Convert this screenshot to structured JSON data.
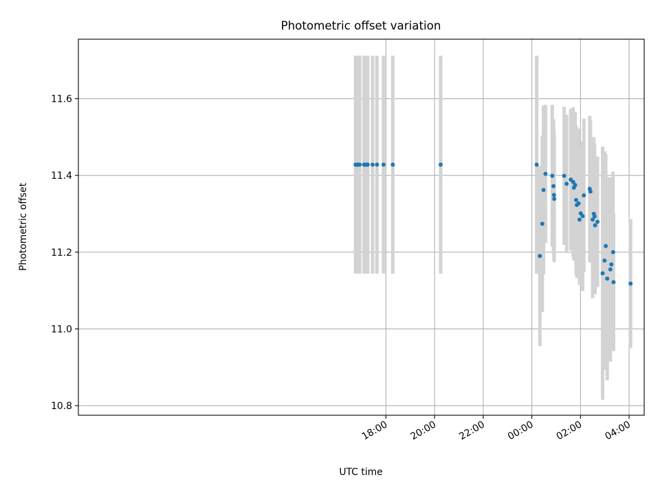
{
  "chart_data": {
    "type": "scatter",
    "title": "Photometric offset variation",
    "xlabel": "UTC time",
    "ylabel": "Photometric offset",
    "x_unit": "hours since 00:00 UTC (negative = previous day)",
    "xlim": [
      -18.65,
      4.62
    ],
    "ylim": [
      10.775,
      11.755
    ],
    "x_ticks": [
      {
        "value": -6,
        "label": "18:00"
      },
      {
        "value": -4,
        "label": "20:00"
      },
      {
        "value": -2,
        "label": "22:00"
      },
      {
        "value": 0,
        "label": "00:00"
      },
      {
        "value": 2,
        "label": "02:00"
      },
      {
        "value": 4,
        "label": "04:00"
      }
    ],
    "y_ticks": [
      {
        "value": 10.8,
        "label": "10.8"
      },
      {
        "value": 11.0,
        "label": "11.0"
      },
      {
        "value": 11.2,
        "label": "11.2"
      },
      {
        "value": 11.4,
        "label": "11.4"
      },
      {
        "value": 11.6,
        "label": "11.6"
      }
    ],
    "grid": true,
    "colors": {
      "points": "#1f77b4",
      "errorbars": "#d3d3d3",
      "grid": "#b0b0b0"
    },
    "series": [
      {
        "points": [
          {
            "x": -7.25,
            "y": 11.428,
            "err": 0.284
          },
          {
            "x": -7.2,
            "y": 11.428,
            "err": 0.284
          },
          {
            "x": -7.15,
            "y": 11.428,
            "err": 0.284
          },
          {
            "x": -7.08,
            "y": 11.428,
            "err": 0.284
          },
          {
            "x": -6.9,
            "y": 11.428,
            "err": 0.284
          },
          {
            "x": -6.85,
            "y": 11.428,
            "err": 0.284
          },
          {
            "x": -6.8,
            "y": 11.428,
            "err": 0.284
          },
          {
            "x": -6.75,
            "y": 11.428,
            "err": 0.284
          },
          {
            "x": -6.55,
            "y": 11.428,
            "err": 0.284
          },
          {
            "x": -6.37,
            "y": 11.428,
            "err": 0.284
          },
          {
            "x": -6.1,
            "y": 11.428,
            "err": 0.284
          },
          {
            "x": -5.72,
            "y": 11.428,
            "err": 0.284
          },
          {
            "x": -3.75,
            "y": 11.428,
            "err": 0.284
          },
          {
            "x": 0.2,
            "y": 11.428,
            "err": 0.284
          },
          {
            "x": 0.33,
            "y": 11.19,
            "err": 0.235
          },
          {
            "x": 0.43,
            "y": 11.274,
            "err": 0.23
          },
          {
            "x": 0.48,
            "y": 11.362,
            "err": 0.22
          },
          {
            "x": 0.56,
            "y": 11.404,
            "err": 0.18
          },
          {
            "x": 0.84,
            "y": 11.399,
            "err": 0.185
          },
          {
            "x": 0.89,
            "y": 11.372,
            "err": 0.175
          },
          {
            "x": 0.91,
            "y": 11.349,
            "err": 0.17
          },
          {
            "x": 0.92,
            "y": 11.339,
            "err": 0.165
          },
          {
            "x": 1.33,
            "y": 11.399,
            "err": 0.18
          },
          {
            "x": 1.43,
            "y": 11.378,
            "err": 0.18
          },
          {
            "x": 1.6,
            "y": 11.389,
            "err": 0.185
          },
          {
            "x": 1.7,
            "y": 11.383,
            "err": 0.195
          },
          {
            "x": 1.73,
            "y": 11.368,
            "err": 0.19
          },
          {
            "x": 1.78,
            "y": 11.375,
            "err": 0.19
          },
          {
            "x": 1.82,
            "y": 11.336,
            "err": 0.195
          },
          {
            "x": 1.85,
            "y": 11.323,
            "err": 0.19
          },
          {
            "x": 1.92,
            "y": 11.327,
            "err": 0.195
          },
          {
            "x": 1.96,
            "y": 11.285,
            "err": 0.17
          },
          {
            "x": 2.01,
            "y": 11.301,
            "err": 0.175
          },
          {
            "x": 2.09,
            "y": 11.294,
            "err": 0.195
          },
          {
            "x": 2.14,
            "y": 11.348,
            "err": 0.2
          },
          {
            "x": 2.38,
            "y": 11.365,
            "err": 0.19
          },
          {
            "x": 2.41,
            "y": 11.358,
            "err": 0.185
          },
          {
            "x": 2.5,
            "y": 11.285,
            "err": 0.205
          },
          {
            "x": 2.55,
            "y": 11.3,
            "err": 0.2
          },
          {
            "x": 2.58,
            "y": 11.293,
            "err": 0.19
          },
          {
            "x": 2.6,
            "y": 11.27,
            "err": 0.18
          },
          {
            "x": 2.7,
            "y": 11.279,
            "err": 0.17
          },
          {
            "x": 2.91,
            "y": 11.145,
            "err": 0.33
          },
          {
            "x": 2.99,
            "y": 11.178,
            "err": 0.285
          },
          {
            "x": 3.04,
            "y": 11.216,
            "err": 0.24
          },
          {
            "x": 3.1,
            "y": 11.131,
            "err": 0.265
          },
          {
            "x": 3.23,
            "y": 11.155,
            "err": 0.24
          },
          {
            "x": 3.27,
            "y": 11.168,
            "err": 0.19
          },
          {
            "x": 3.34,
            "y": 11.2,
            "err": 0.21
          },
          {
            "x": 3.36,
            "y": 11.122,
            "err": 0.18
          },
          {
            "x": 4.06,
            "y": 11.118,
            "err": 0.168
          }
        ]
      }
    ]
  }
}
